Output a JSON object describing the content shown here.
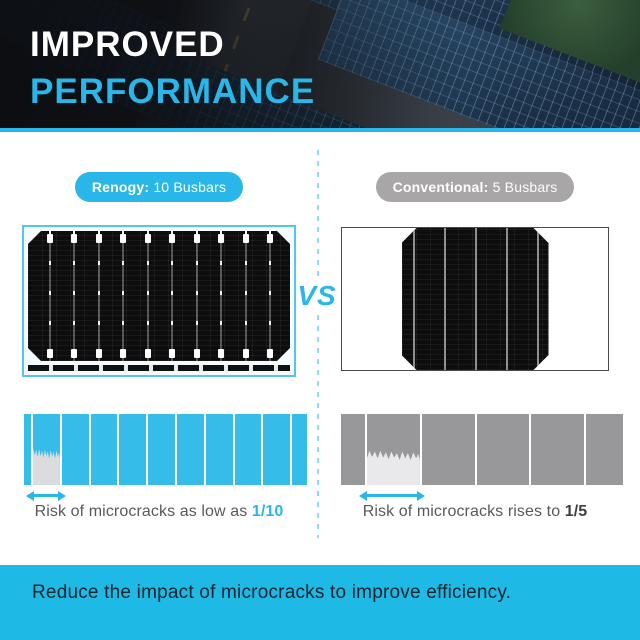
{
  "header": {
    "title_line1": "IMPROVED",
    "title_line2": "PERFORMANCE"
  },
  "comparison": {
    "vs_label": "VS",
    "left": {
      "badge_brand": "Renogy:",
      "badge_detail": " 10 Busbars",
      "busbar_count": 10,
      "bar_line_positions_pct": [
        2.5,
        12.7,
        22.9,
        33.0,
        43.2,
        53.4,
        63.6,
        73.7,
        83.9,
        94.0
      ],
      "crack": {
        "left_pct": 2.5,
        "width_pct": 10.2
      },
      "risk_prefix": "Risk of microcracks as low as ",
      "risk_value": "1/10"
    },
    "right": {
      "badge_brand": "Conventional:",
      "badge_detail": " 5 Busbars",
      "busbar_count": 5,
      "bar_line_positions_pct": [
        8.5,
        28.0,
        47.5,
        66.7,
        86.2
      ],
      "crack": {
        "left_pct": 8.5,
        "width_pct": 19.5
      },
      "risk_prefix": "Risk of microcracks rises to ",
      "risk_value": "1/5"
    }
  },
  "footer": {
    "message": "Reduce the impact of microcracks to improve efficiency."
  },
  "colors": {
    "accent_cyan": "#29B6E8",
    "bar_cyan": "#35BCE8",
    "bar_gray": "#98989A",
    "badge_gray": "#A8A6A7",
    "crack_fill_left": "#DBDCDD",
    "crack_fill_right": "#E9E9EB",
    "text_gray": "#58595B",
    "value_dark": "#3E3E40",
    "banner_bg": "#1FB9E6",
    "banner_text": "#16252F"
  }
}
